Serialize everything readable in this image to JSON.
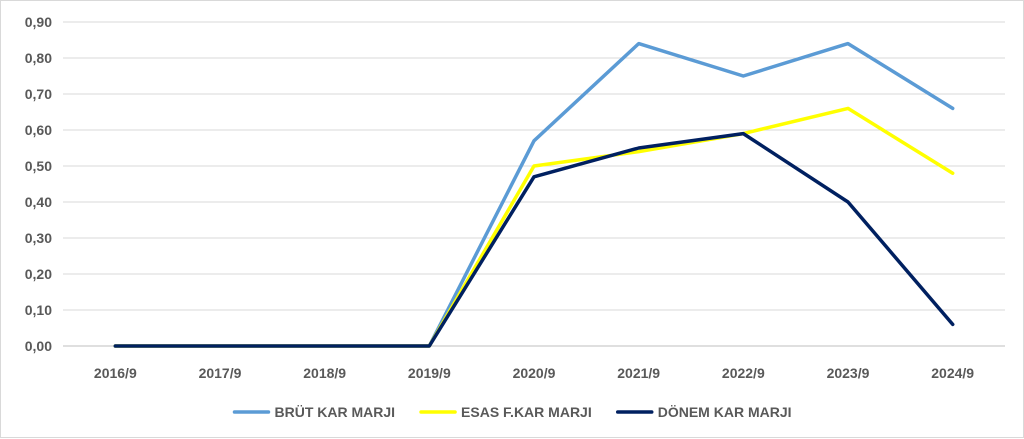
{
  "chart_data": {
    "type": "line",
    "categories": [
      "2016/9",
      "2017/9",
      "2018/9",
      "2019/9",
      "2020/9",
      "2021/9",
      "2022/9",
      "2023/9",
      "2024/9"
    ],
    "y_tick_labels": [
      "0,00",
      "0,10",
      "0,20",
      "0,30",
      "0,40",
      "0,50",
      "0,60",
      "0,70",
      "0,80",
      "0,90"
    ],
    "ylim": [
      0,
      0.9
    ],
    "grid": true,
    "legend_position": "bottom",
    "title": "",
    "xlabel": "",
    "ylabel": "",
    "series": [
      {
        "name": "BRÜT KAR MARJI",
        "color": "#5b9bd5",
        "values": [
          0,
          0,
          0,
          0,
          0.57,
          0.84,
          0.75,
          0.84,
          0.66
        ]
      },
      {
        "name": "ESAS F.KAR MARJI",
        "color": "#ffff00",
        "values": [
          0,
          0,
          0,
          0,
          0.5,
          0.54,
          0.59,
          0.66,
          0.48
        ]
      },
      {
        "name": "DÖNEM KAR MARJI",
        "color": "#002060",
        "values": [
          0,
          0,
          0,
          0,
          0.47,
          0.55,
          0.59,
          0.4,
          0.06
        ]
      }
    ]
  }
}
